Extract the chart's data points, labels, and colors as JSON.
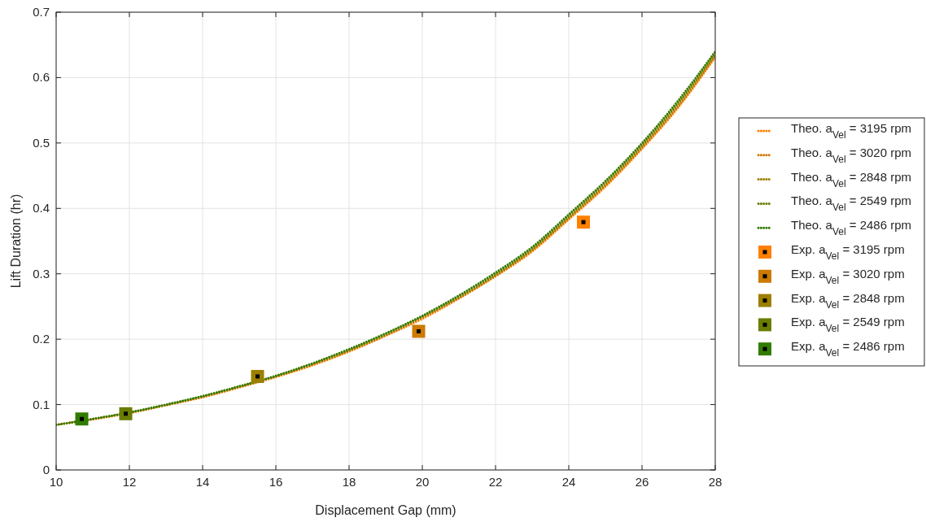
{
  "chart_data": {
    "type": "line",
    "xlabel": "Displacement Gap (mm)",
    "ylabel": "Lift Duration (hr)",
    "xlim": [
      10,
      28
    ],
    "ylim": [
      0,
      0.7
    ],
    "xticks": [
      10,
      12,
      14,
      16,
      18,
      20,
      22,
      24,
      26,
      28
    ],
    "yticks": [
      0,
      0.1,
      0.2,
      0.3,
      0.4,
      0.5,
      0.6,
      0.7
    ],
    "grid": true,
    "legend": "right",
    "line_style": "dotted",
    "x": [
      10,
      11,
      12,
      13,
      14,
      15,
      16,
      17,
      18,
      19,
      20,
      21,
      22,
      23,
      24,
      25,
      26,
      27,
      28
    ],
    "series": [
      {
        "name": "Theo. a$_{Vel}$ = 3195 rpm",
        "color": "#ff8000",
        "values": [
          0.069,
          0.077,
          0.087,
          0.099,
          0.111,
          0.126,
          0.142,
          0.16,
          0.181,
          0.205,
          0.231,
          0.262,
          0.296,
          0.334,
          0.383,
          0.433,
          0.491,
          0.555,
          0.631
        ]
      },
      {
        "name": "Theo. a$_{Vel}$ = 3020 rpm",
        "color": "#cc7a00",
        "values": [
          0.069,
          0.078,
          0.087,
          0.099,
          0.112,
          0.127,
          0.143,
          0.161,
          0.182,
          0.206,
          0.233,
          0.263,
          0.297,
          0.336,
          0.385,
          0.435,
          0.493,
          0.557,
          0.633
        ]
      },
      {
        "name": "Theo. a$_{Vel}$ = 2848 rpm",
        "color": "#9b8000",
        "values": [
          0.069,
          0.078,
          0.088,
          0.099,
          0.112,
          0.127,
          0.143,
          0.162,
          0.183,
          0.207,
          0.234,
          0.264,
          0.298,
          0.337,
          0.386,
          0.437,
          0.495,
          0.56,
          0.635
        ]
      },
      {
        "name": "Theo. a$_{Vel}$ = 2549 rpm",
        "color": "#6a7d00",
        "values": [
          0.069,
          0.078,
          0.088,
          0.1,
          0.113,
          0.128,
          0.144,
          0.163,
          0.184,
          0.208,
          0.235,
          0.266,
          0.3,
          0.339,
          0.389,
          0.44,
          0.498,
          0.563,
          0.638
        ]
      },
      {
        "name": "Theo. a$_{Vel}$ = 2486 rpm",
        "color": "#317c00",
        "values": [
          0.069,
          0.078,
          0.088,
          0.1,
          0.113,
          0.128,
          0.144,
          0.163,
          0.185,
          0.209,
          0.236,
          0.267,
          0.302,
          0.341,
          0.391,
          0.442,
          0.5,
          0.566,
          0.64
        ]
      },
      {
        "name": "Exp. a$_{Vel}$ = 3195 rpm",
        "type": "scatter",
        "marker": "square",
        "color": "#ff8000",
        "x": [
          24.4
        ],
        "values": [
          0.379
        ]
      },
      {
        "name": "Exp. a$_{Vel}$ = 3020 rpm",
        "type": "scatter",
        "marker": "square",
        "color": "#cc7a00",
        "x": [
          19.9
        ],
        "values": [
          0.212
        ]
      },
      {
        "name": "Exp. a$_{Vel}$ = 2848 rpm",
        "type": "scatter",
        "marker": "square",
        "color": "#9b8000",
        "x": [
          15.5
        ],
        "values": [
          0.143
        ]
      },
      {
        "name": "Exp. a$_{Vel}$ = 2549 rpm",
        "type": "scatter",
        "marker": "square",
        "color": "#6a7d00",
        "x": [
          11.9
        ],
        "values": [
          0.086
        ]
      },
      {
        "name": "Exp. a$_{Vel}$ = 2486 rpm",
        "type": "scatter",
        "marker": "square",
        "color": "#317c00",
        "x": [
          10.7
        ],
        "values": [
          0.078
        ]
      }
    ]
  }
}
